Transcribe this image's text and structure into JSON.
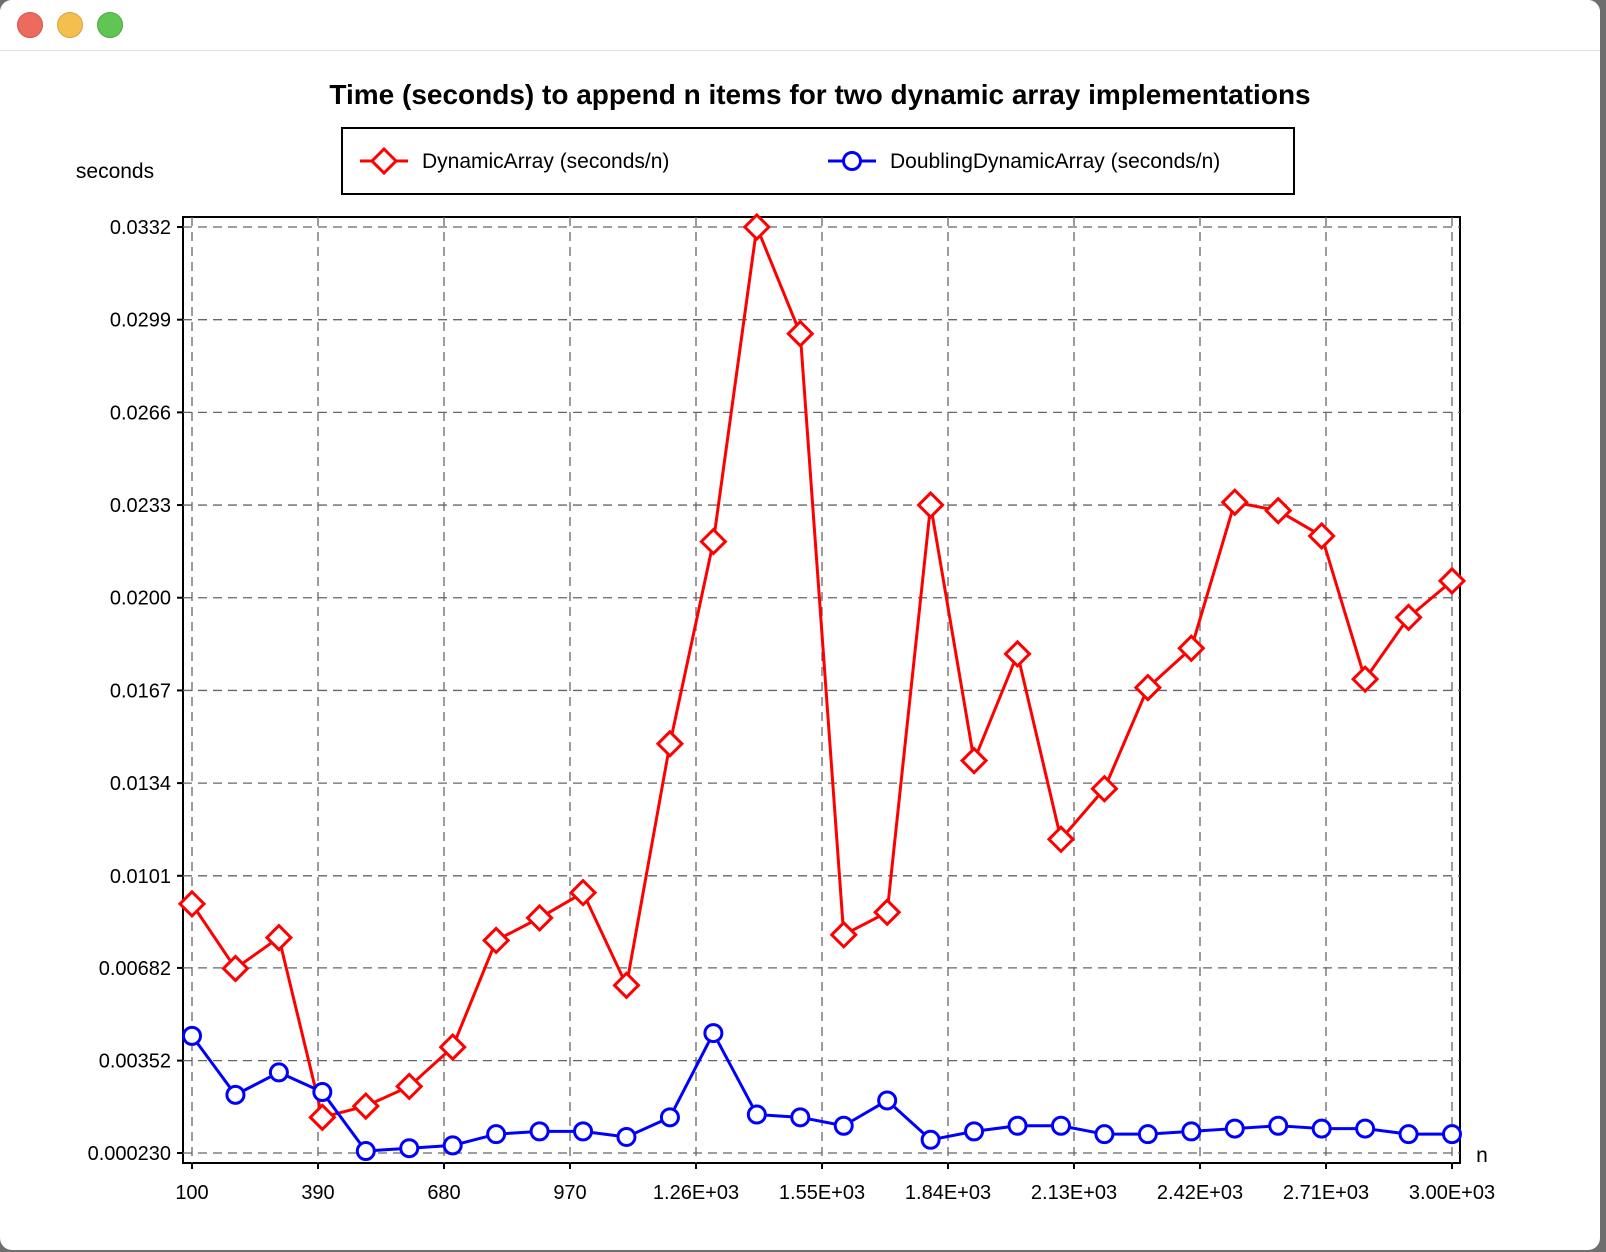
{
  "window": {
    "buttons": [
      "close",
      "minimize",
      "zoom"
    ]
  },
  "chart_data": {
    "type": "line",
    "title": "Time (seconds) to append n items for two dynamic array implementations",
    "xlabel": "n",
    "ylabel": "seconds",
    "xlim": [
      100,
      3000
    ],
    "ylim": [
      0.00023,
      0.0332
    ],
    "grid": true,
    "legend_position": "top",
    "x_ticks": [
      {
        "value": 100,
        "label": "100"
      },
      {
        "value": 390,
        "label": "390"
      },
      {
        "value": 680,
        "label": "680"
      },
      {
        "value": 970,
        "label": "970"
      },
      {
        "value": 1260,
        "label": "1.26E+03"
      },
      {
        "value": 1550,
        "label": "1.55E+03"
      },
      {
        "value": 1840,
        "label": "1.84E+03"
      },
      {
        "value": 2130,
        "label": "2.13E+03"
      },
      {
        "value": 2420,
        "label": "2.42E+03"
      },
      {
        "value": 2710,
        "label": "2.71E+03"
      },
      {
        "value": 3000,
        "label": "3.00E+03"
      }
    ],
    "y_ticks": [
      {
        "value": 0.00023,
        "label": "0.000230"
      },
      {
        "value": 0.00352,
        "label": "0.00352"
      },
      {
        "value": 0.00682,
        "label": "0.00682"
      },
      {
        "value": 0.0101,
        "label": "0.0101"
      },
      {
        "value": 0.0134,
        "label": "0.0134"
      },
      {
        "value": 0.0167,
        "label": "0.0167"
      },
      {
        "value": 0.02,
        "label": "0.0200"
      },
      {
        "value": 0.0233,
        "label": "0.0233"
      },
      {
        "value": 0.0266,
        "label": "0.0266"
      },
      {
        "value": 0.0299,
        "label": "0.0299"
      },
      {
        "value": 0.0332,
        "label": "0.0332"
      }
    ],
    "x": [
      100,
      200,
      300,
      400,
      500,
      600,
      700,
      800,
      900,
      1000,
      1100,
      1200,
      1300,
      1400,
      1500,
      1600,
      1700,
      1800,
      1900,
      2000,
      2100,
      2200,
      2300,
      2400,
      2500,
      2600,
      2700,
      2800,
      2900,
      3000
    ],
    "series": [
      {
        "name": "DynamicArray (seconds/n)",
        "color": "#ff0000",
        "marker": "diamond",
        "values": [
          0.0091,
          0.0068,
          0.0079,
          0.0015,
          0.0019,
          0.0026,
          0.004,
          0.0078,
          0.0086,
          0.0095,
          0.0062,
          0.0148,
          0.022,
          0.0332,
          0.0294,
          0.008,
          0.0088,
          0.0233,
          0.0142,
          0.018,
          0.0114,
          0.0132,
          0.0168,
          0.0182,
          0.0234,
          0.0231,
          0.0222,
          0.0171,
          0.0193,
          0.0206
        ]
      },
      {
        "name": "DoublingDynamicArray (seconds/n)",
        "color": "#0000ff",
        "marker": "circle",
        "values": [
          0.0044,
          0.0023,
          0.0031,
          0.0024,
          0.0003,
          0.0004,
          0.0005,
          0.0009,
          0.001,
          0.001,
          0.0008,
          0.0015,
          0.0045,
          0.0016,
          0.0015,
          0.0012,
          0.0021,
          0.0007,
          0.001,
          0.0012,
          0.0012,
          0.0009,
          0.0009,
          0.001,
          0.0011,
          0.0012,
          0.0011,
          0.0011,
          0.0009,
          0.0009
        ]
      }
    ]
  }
}
